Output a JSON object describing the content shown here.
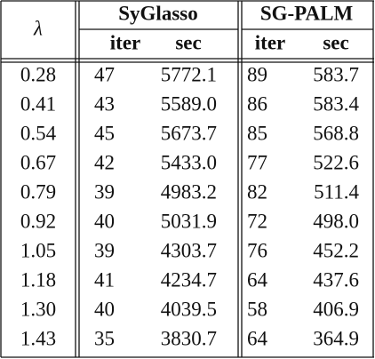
{
  "header": {
    "lambda": "λ",
    "groups": [
      "SyGlasso",
      "SG-PALM"
    ],
    "subheaders": [
      "iter",
      "sec",
      "iter",
      "sec"
    ]
  },
  "table": {
    "rows": [
      [
        "0.28",
        "47",
        "5772.1",
        "89",
        "583.7"
      ],
      [
        "0.41",
        "43",
        "5589.0",
        "86",
        "583.4"
      ],
      [
        "0.54",
        "45",
        "5673.7",
        "85",
        "568.8"
      ],
      [
        "0.67",
        "42",
        "5433.0",
        "77",
        "522.6"
      ],
      [
        "0.79",
        "39",
        "4983.2",
        "82",
        "511.4"
      ],
      [
        "0.92",
        "40",
        "5031.9",
        "72",
        "498.0"
      ],
      [
        "1.05",
        "39",
        "4303.7",
        "76",
        "452.2"
      ],
      [
        "1.18",
        "41",
        "4234.7",
        "64",
        "437.6"
      ],
      [
        "1.30",
        "40",
        "4039.5",
        "58",
        "406.9"
      ],
      [
        "1.43",
        "35",
        "3830.7",
        "64",
        "364.9"
      ]
    ]
  }
}
